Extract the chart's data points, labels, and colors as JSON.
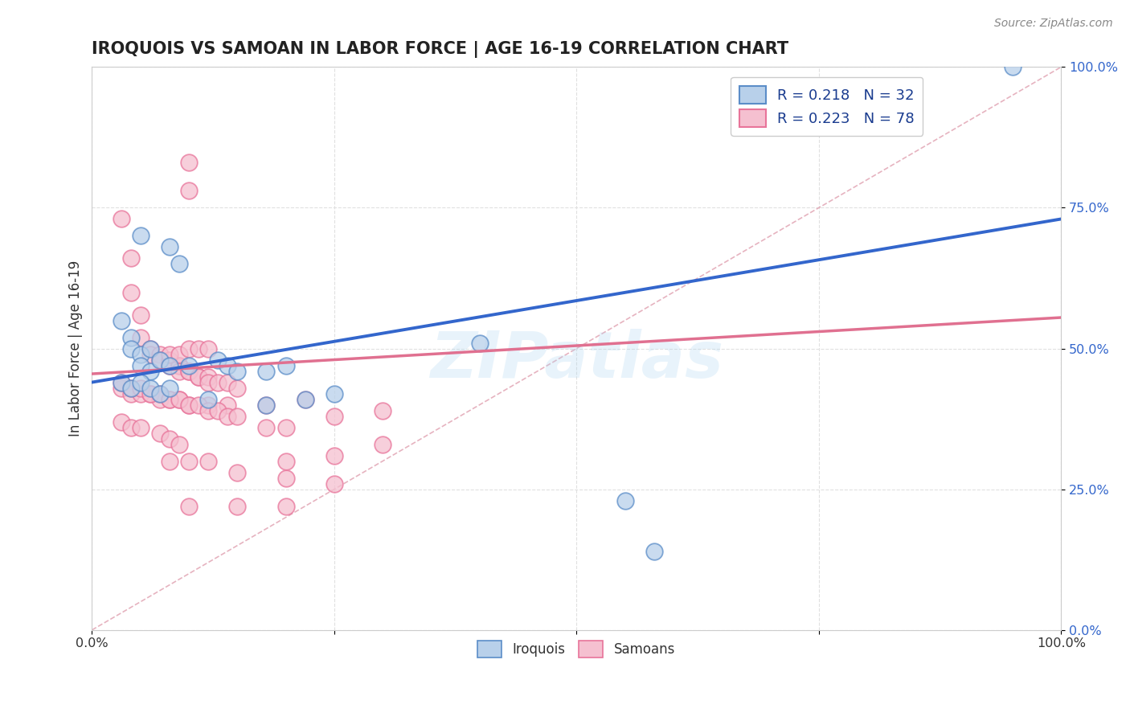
{
  "title": "IROQUOIS VS SAMOAN IN LABOR FORCE | AGE 16-19 CORRELATION CHART",
  "source": "Source: ZipAtlas.com",
  "ylabel": "In Labor Force | Age 16-19",
  "xlim": [
    0,
    1
  ],
  "ylim": [
    0,
    1
  ],
  "ytick_vals": [
    0,
    0.25,
    0.5,
    0.75,
    1.0
  ],
  "ytick_labels": [
    "0.0%",
    "25.0%",
    "50.0%",
    "75.0%",
    "100.0%"
  ],
  "xtick_vals": [
    0,
    0.25,
    0.5,
    0.75,
    1.0
  ],
  "xtick_labels": [
    "0.0%",
    "",
    "",
    "",
    "100.0%"
  ],
  "iroquois_fill": "#b8d0ea",
  "iroquois_edge": "#5b8dc8",
  "samoan_fill": "#f5c0d0",
  "samoan_edge": "#e8749a",
  "iroquois_line_color": "#3366cc",
  "samoan_line_color": "#e07090",
  "diagonal_color": "#e0a0b0",
  "legend_r_iroquois": "R = 0.218",
  "legend_n_iroquois": "N = 32",
  "legend_r_samoan": "R = 0.223",
  "legend_n_samoan": "N = 78",
  "watermark": "ZIPatlas",
  "background_color": "#ffffff",
  "grid_color": "#e0e0e0",
  "iroquois_x": [
    0.05,
    0.08,
    0.09,
    0.03,
    0.04,
    0.04,
    0.05,
    0.05,
    0.06,
    0.06,
    0.07,
    0.08,
    0.1,
    0.13,
    0.14,
    0.15,
    0.18,
    0.2,
    0.22,
    0.25,
    0.03,
    0.04,
    0.05,
    0.06,
    0.07,
    0.08,
    0.12,
    0.18,
    0.4,
    0.55,
    0.58,
    0.95
  ],
  "iroquois_y": [
    0.7,
    0.68,
    0.65,
    0.55,
    0.52,
    0.5,
    0.49,
    0.47,
    0.46,
    0.5,
    0.48,
    0.47,
    0.47,
    0.48,
    0.47,
    0.46,
    0.46,
    0.47,
    0.41,
    0.42,
    0.44,
    0.43,
    0.44,
    0.43,
    0.42,
    0.43,
    0.41,
    0.4,
    0.51,
    0.23,
    0.14,
    1.0
  ],
  "samoan_x": [
    0.1,
    0.1,
    0.03,
    0.04,
    0.04,
    0.05,
    0.05,
    0.06,
    0.06,
    0.07,
    0.07,
    0.08,
    0.08,
    0.08,
    0.09,
    0.09,
    0.09,
    0.1,
    0.1,
    0.11,
    0.11,
    0.12,
    0.12,
    0.13,
    0.14,
    0.15,
    0.03,
    0.04,
    0.05,
    0.06,
    0.07,
    0.08,
    0.09,
    0.1,
    0.12,
    0.14,
    0.18,
    0.22,
    0.08,
    0.09,
    0.1,
    0.11,
    0.12,
    0.03,
    0.04,
    0.05,
    0.07,
    0.08,
    0.09,
    0.03,
    0.04,
    0.05,
    0.06,
    0.07,
    0.08,
    0.09,
    0.1,
    0.11,
    0.12,
    0.13,
    0.14,
    0.15,
    0.18,
    0.2,
    0.08,
    0.1,
    0.12,
    0.15,
    0.2,
    0.25,
    0.25,
    0.3,
    0.1,
    0.15,
    0.2,
    0.2,
    0.25,
    0.3
  ],
  "samoan_y": [
    0.83,
    0.78,
    0.73,
    0.66,
    0.6,
    0.56,
    0.52,
    0.5,
    0.49,
    0.49,
    0.48,
    0.48,
    0.47,
    0.47,
    0.47,
    0.47,
    0.46,
    0.46,
    0.46,
    0.45,
    0.45,
    0.45,
    0.44,
    0.44,
    0.44,
    0.43,
    0.43,
    0.42,
    0.42,
    0.42,
    0.41,
    0.41,
    0.41,
    0.4,
    0.4,
    0.4,
    0.4,
    0.41,
    0.49,
    0.49,
    0.5,
    0.5,
    0.5,
    0.37,
    0.36,
    0.36,
    0.35,
    0.34,
    0.33,
    0.44,
    0.43,
    0.43,
    0.42,
    0.42,
    0.41,
    0.41,
    0.4,
    0.4,
    0.39,
    0.39,
    0.38,
    0.38,
    0.36,
    0.36,
    0.3,
    0.3,
    0.3,
    0.28,
    0.27,
    0.26,
    0.38,
    0.39,
    0.22,
    0.22,
    0.22,
    0.3,
    0.31,
    0.33
  ]
}
